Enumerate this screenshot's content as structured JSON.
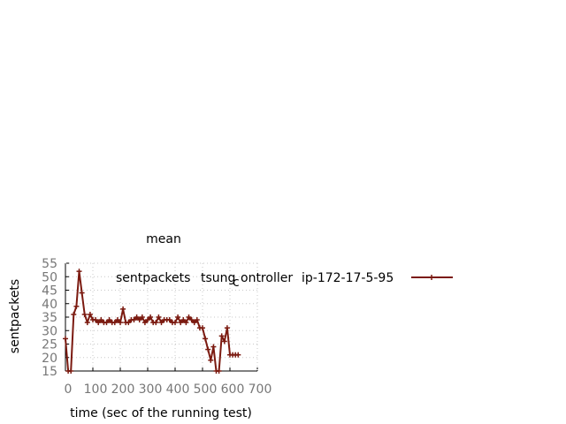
{
  "chart_data": {
    "type": "line",
    "title": "mean",
    "xlabel": "time (sec of the running test)",
    "ylabel": "sentpackets",
    "xlim": [
      0,
      700
    ],
    "ylim": [
      15,
      55
    ],
    "xticks": [
      "0",
      "100",
      "200",
      "300",
      "400",
      "500",
      "600",
      "700"
    ],
    "yticks": [
      "15",
      "20",
      "25",
      "30",
      "35",
      "40",
      "45",
      "50",
      "55"
    ],
    "grid": true,
    "legend_position": "right",
    "series": [
      {
        "name_parts": [
          "sentpackets",
          "tsung",
          "c",
          "ontroller",
          "ip-172-17-5-95"
        ],
        "color": "#7b1a10",
        "marker": "plus",
        "x": [
          0,
          10,
          20,
          30,
          40,
          50,
          60,
          70,
          80,
          90,
          100,
          110,
          120,
          130,
          140,
          150,
          160,
          170,
          180,
          190,
          200,
          210,
          220,
          230,
          240,
          250,
          260,
          270,
          280,
          290,
          300,
          310,
          320,
          330,
          340,
          350,
          360,
          370,
          380,
          390,
          400,
          410,
          420,
          430,
          440,
          450,
          460,
          470,
          480,
          490,
          500,
          510,
          520,
          530,
          540,
          550,
          560,
          570,
          580,
          590,
          600,
          610,
          620,
          630
        ],
        "y": [
          27,
          15,
          15,
          36,
          39,
          52,
          44,
          36,
          33,
          36,
          34,
          34,
          33,
          34,
          33,
          33,
          34,
          33,
          33,
          34,
          33,
          38,
          33,
          33,
          34,
          34,
          35,
          34,
          35,
          33,
          34,
          35,
          33,
          33,
          35,
          33,
          34,
          34,
          34,
          33,
          33,
          35,
          33,
          34,
          33,
          35,
          34,
          33,
          34,
          31,
          31,
          27,
          23,
          19,
          24,
          15,
          15,
          28,
          26,
          31,
          21,
          21,
          21,
          21
        ]
      }
    ]
  }
}
